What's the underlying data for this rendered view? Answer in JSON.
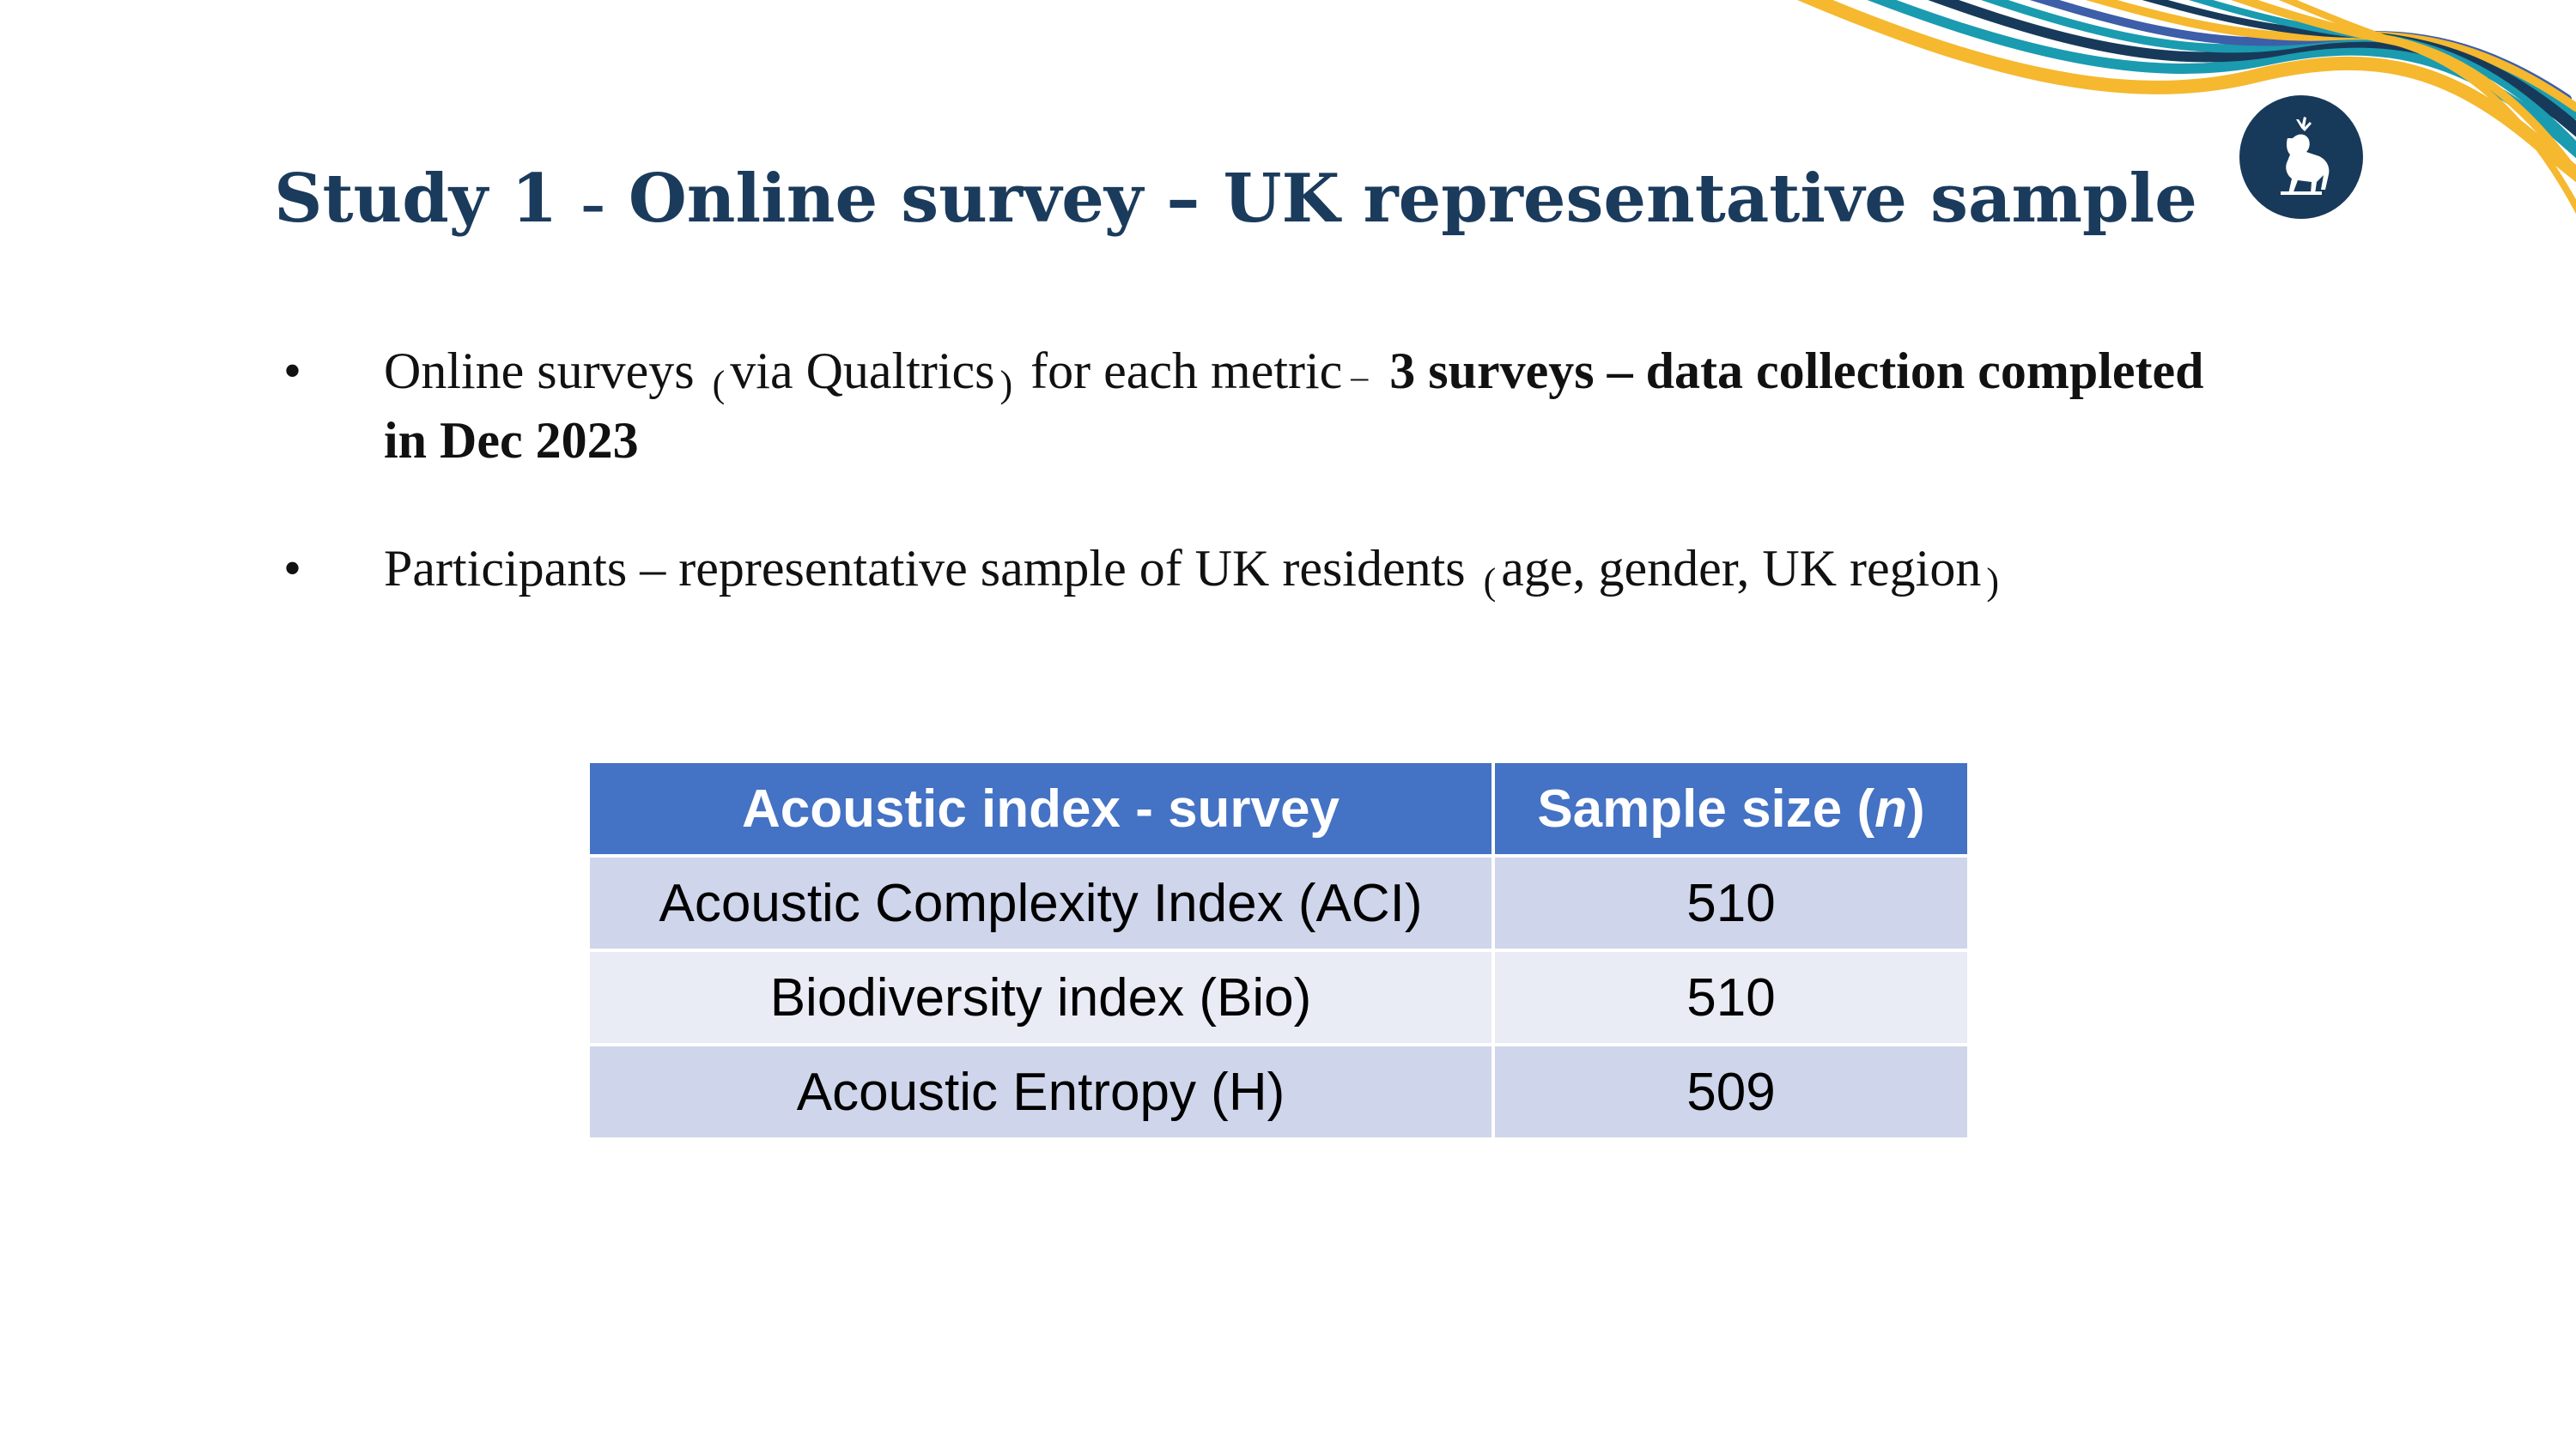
{
  "slide": {
    "title_part1": "Study 1",
    "title_dash1": "–",
    "title_part2": "Online survey",
    "title_dash2": "–",
    "title_part3": "UK representative sample"
  },
  "bullets": [
    {
      "marker": "•",
      "text_a": "Online surveys",
      "paren_open": "(",
      "text_b": "via Qualtrics",
      "paren_close": ")",
      "text_c": "for each metric",
      "dash": "–",
      "bold_text": "3 surveys – data collection completed in Dec 2023"
    },
    {
      "marker": "•",
      "text_a": "Participants – representative sample of UK residents",
      "paren_open": "(",
      "text_b": "age, gender, UK region",
      "paren_close": ")"
    }
  ],
  "table": {
    "headers": {
      "index_label": "Acoustic index - survey",
      "n_label_prefix": "Sample size (",
      "n_label_italic": "n",
      "n_label_suffix": ")"
    },
    "rows": [
      {
        "index": "Acoustic Complexity Index (ACI)",
        "n": "510"
      },
      {
        "index": "Biodiversity index (Bio)",
        "n": "510"
      },
      {
        "index": "Acoustic Entropy (H)",
        "n": "509"
      }
    ]
  },
  "colors": {
    "title": "#1b3b5c",
    "header_bg": "#4472c4",
    "row_odd": "#cfd5ea",
    "row_even": "#e9ebf5",
    "logo_bg": "#183a5a",
    "wave_gold": "#f5b82e",
    "wave_teal": "#1a9bb0",
    "wave_navy": "#183a5a",
    "wave_blue": "#3d5ea8"
  },
  "icons": {
    "logo": "stag-crest-icon"
  }
}
